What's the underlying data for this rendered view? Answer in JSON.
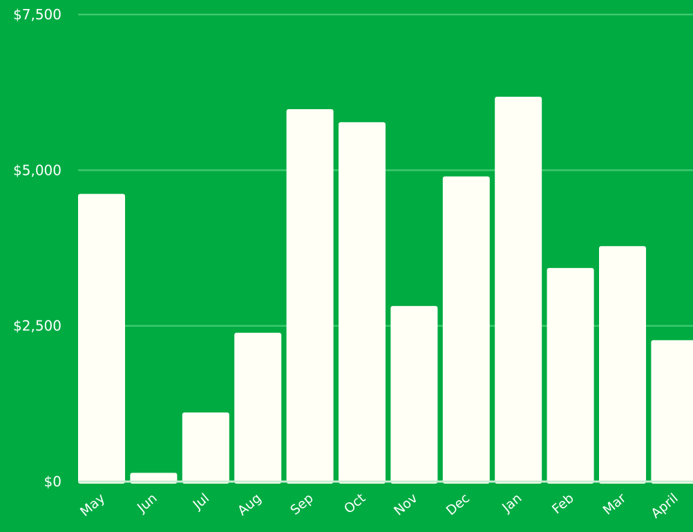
{
  "colors": {
    "background": "#00ab42",
    "bar": "#fffff5",
    "grid": "#3fc96f",
    "axis": "#c9ecd3",
    "text": "#ffffff"
  },
  "chart_data": {
    "type": "bar",
    "title": "",
    "xlabel": "",
    "ylabel": "",
    "categories": [
      "May",
      "Jun",
      "Jul",
      "Aug",
      "Sep",
      "Oct",
      "Nov",
      "Dec",
      "Jan",
      "Feb",
      "Mar",
      "April"
    ],
    "values": [
      4620,
      140,
      1110,
      2390,
      5980,
      5770,
      2820,
      4900,
      6180,
      3430,
      3780,
      2270
    ],
    "ylim": [
      0,
      7500
    ],
    "yticks": [
      0,
      2500,
      5000,
      7500
    ],
    "ytick_labels": [
      "$0",
      "$2,500",
      "$5,000",
      "$7,500"
    ],
    "grid": true,
    "legend": "none"
  }
}
